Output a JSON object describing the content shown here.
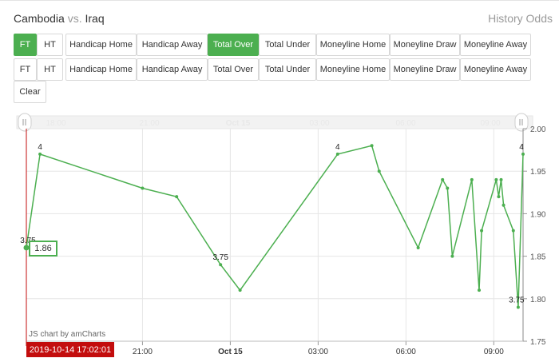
{
  "header": {
    "home_team": "Cambodia",
    "vs": "vs.",
    "away_team": "Iraq",
    "history_label": "History Odds"
  },
  "toolbar": {
    "row1": [
      {
        "label": "FT",
        "active": true
      },
      {
        "label": "HT",
        "active": false
      },
      {
        "label": "Handicap Home",
        "active": false
      },
      {
        "label": "Handicap Away",
        "active": false
      },
      {
        "label": "Total Over",
        "active": true
      },
      {
        "label": "Total Under",
        "active": false
      },
      {
        "label": "Moneyline Home",
        "active": false
      },
      {
        "label": "Moneyline Draw",
        "active": false
      },
      {
        "label": "Moneyline Away",
        "active": false
      }
    ],
    "row2": [
      {
        "label": "FT",
        "active": false
      },
      {
        "label": "HT",
        "active": false
      },
      {
        "label": "Handicap Home",
        "active": false
      },
      {
        "label": "Handicap Away",
        "active": false
      },
      {
        "label": "Total Over",
        "active": false
      },
      {
        "label": "Total Under",
        "active": false
      },
      {
        "label": "Moneyline Home",
        "active": false
      },
      {
        "label": "Moneyline Draw",
        "active": false
      },
      {
        "label": "Moneyline Away",
        "active": false
      }
    ],
    "clear_label": "Clear"
  },
  "chart_data": {
    "type": "line",
    "series": [
      {
        "values": [
          1.86,
          1.97,
          1.93,
          1.92,
          1.84,
          1.81,
          1.97,
          1.98,
          1.95,
          1.86,
          1.94,
          1.93,
          1.85,
          1.94,
          1.81,
          1.88,
          1.94,
          1.92,
          1.94,
          1.91,
          1.88,
          1.79,
          1.97
        ],
        "point_labels": [
          "3.75",
          "4",
          "",
          "",
          "3.75",
          "",
          "4",
          "",
          "",
          "",
          "",
          "",
          "",
          "",
          "",
          "",
          "",
          "",
          "",
          "",
          "",
          "3.75",
          "4"
        ]
      }
    ],
    "x_times": [
      "2019-10-14 17:02",
      "2019-10-14 17:30",
      "2019-10-14 21:00",
      "2019-10-14 22:10",
      "2019-10-14 23:40",
      "2019-10-15 00:20",
      "2019-10-15 03:40",
      "2019-10-15 04:50",
      "2019-10-15 05:05",
      "2019-10-15 06:25",
      "2019-10-15 07:15",
      "2019-10-15 07:25",
      "2019-10-15 07:35",
      "2019-10-15 08:15",
      "2019-10-15 08:30",
      "2019-10-15 08:35",
      "2019-10-15 09:05",
      "2019-10-15 09:10",
      "2019-10-15 09:15",
      "2019-10-15 09:20",
      "2019-10-15 09:40",
      "2019-10-15 09:50",
      "2019-10-15 10:00"
    ],
    "x_ticks": [
      "21:00",
      "Oct 15",
      "03:00",
      "06:00",
      "09:00"
    ],
    "x_ticks_bold": [
      false,
      true,
      false,
      false,
      false
    ],
    "scroll_ticks": [
      "18:00",
      "21:00",
      "Oct 15",
      "03:00",
      "06:00",
      "09:00"
    ],
    "y_ticks": [
      "2.00",
      "1.95",
      "1.90",
      "1.85",
      "1.80",
      "1.75"
    ],
    "ylim": [
      1.75,
      2.0
    ],
    "cursor_time": "2019-10-14 17:02:01",
    "tooltip_value": "1.86",
    "credit": "JS chart by amCharts",
    "line_color": "#4caf50",
    "cursor_color": "#c30d0d",
    "grid": true
  }
}
